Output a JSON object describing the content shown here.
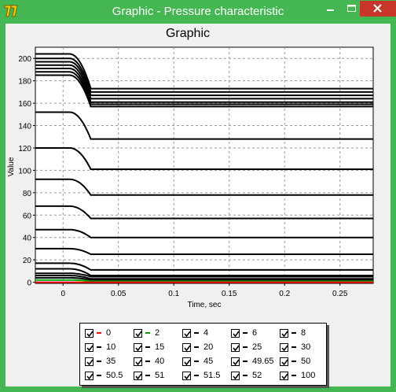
{
  "window": {
    "title": "Graphic - Pressure characteristic",
    "icon": "app-icon"
  },
  "chart_data": {
    "type": "line",
    "title": "Graphic",
    "xlabel": "Time, sec",
    "ylabel": "Value",
    "xlim": [
      -0.025,
      0.28
    ],
    "ylim": [
      -1,
      210
    ],
    "x_ticks": [
      0,
      0.05,
      0.1,
      0.15,
      0.2,
      0.25
    ],
    "x_tick_labels": [
      "0",
      "0.05",
      "0.1",
      "0.15",
      "0.2",
      "0.25"
    ],
    "y_ticks": [
      0,
      20,
      40,
      60,
      80,
      100,
      120,
      140,
      160,
      180,
      200
    ],
    "grid": true,
    "drop_start": 0.012,
    "drop_end": 0.025,
    "series": [
      {
        "name": "0",
        "color": "#ff0000",
        "start": 0,
        "end": 0
      },
      {
        "name": "2",
        "color": "#00a000",
        "start": 2,
        "end": 1
      },
      {
        "name": "4",
        "color": "#000000",
        "start": 4,
        "end": 2
      },
      {
        "name": "6",
        "color": "#000000",
        "start": 6,
        "end": 3
      },
      {
        "name": "8",
        "color": "#000000",
        "start": 8,
        "end": 5
      },
      {
        "name": "10",
        "color": "#000000",
        "start": 12,
        "end": 6
      },
      {
        "name": "15",
        "color": "#000000",
        "start": 17,
        "end": 11
      },
      {
        "name": "20",
        "color": "#000000",
        "start": 30,
        "end": 25
      },
      {
        "name": "25",
        "color": "#000000",
        "start": 47,
        "end": 40
      },
      {
        "name": "30",
        "color": "#000000",
        "start": 68,
        "end": 57
      },
      {
        "name": "35",
        "color": "#000000",
        "start": 92,
        "end": 78
      },
      {
        "name": "40",
        "color": "#000000",
        "start": 120,
        "end": 101
      },
      {
        "name": "45",
        "color": "#000000",
        "start": 152,
        "end": 128
      },
      {
        "name": "49.65",
        "color": "#000000",
        "start": 185,
        "end": 157
      },
      {
        "name": "50",
        "color": "#000000",
        "start": 188,
        "end": 159
      },
      {
        "name": "50.5",
        "color": "#000000",
        "start": 191,
        "end": 161
      },
      {
        "name": "51",
        "color": "#000000",
        "start": 194,
        "end": 164
      },
      {
        "name": "51.5",
        "color": "#000000",
        "start": 197,
        "end": 167
      },
      {
        "name": "52",
        "color": "#000000",
        "start": 200,
        "end": 170
      },
      {
        "name": "100",
        "color": "#000000",
        "start": 204,
        "end": 173
      }
    ]
  },
  "legend": {
    "items": [
      {
        "label": "0",
        "color": "#ff0000",
        "checked": true
      },
      {
        "label": "2",
        "color": "#00a000",
        "checked": true
      },
      {
        "label": "4",
        "color": "#000000",
        "checked": true
      },
      {
        "label": "6",
        "color": "#000000",
        "checked": true
      },
      {
        "label": "8",
        "color": "#000000",
        "checked": true
      },
      {
        "label": "10",
        "color": "#000000",
        "checked": true
      },
      {
        "label": "15",
        "color": "#000000",
        "checked": true
      },
      {
        "label": "20",
        "color": "#000000",
        "checked": true
      },
      {
        "label": "25",
        "color": "#000000",
        "checked": true
      },
      {
        "label": "30",
        "color": "#000000",
        "checked": true
      },
      {
        "label": "35",
        "color": "#000000",
        "checked": true
      },
      {
        "label": "40",
        "color": "#000000",
        "checked": true
      },
      {
        "label": "45",
        "color": "#000000",
        "checked": true
      },
      {
        "label": "49.65",
        "color": "#000000",
        "checked": true
      },
      {
        "label": "50",
        "color": "#000000",
        "checked": true
      },
      {
        "label": "50.5",
        "color": "#000000",
        "checked": true
      },
      {
        "label": "51",
        "color": "#000000",
        "checked": true
      },
      {
        "label": "51.5",
        "color": "#000000",
        "checked": true
      },
      {
        "label": "52",
        "color": "#000000",
        "checked": true
      },
      {
        "label": "100",
        "color": "#000000",
        "checked": true
      }
    ]
  }
}
